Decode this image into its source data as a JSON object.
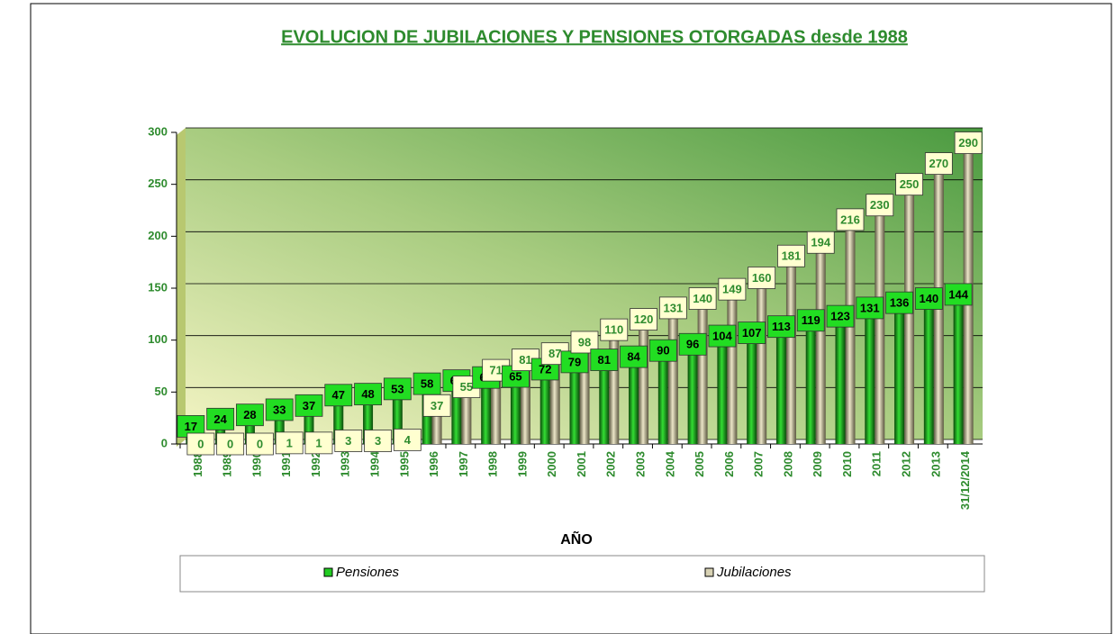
{
  "chart_data": {
    "type": "bar",
    "title": "EVOLUCION DE JUBILACIONES Y PENSIONES OTORGADAS desde 1988",
    "x_label": "AÑO",
    "categories": [
      "1988",
      "1989",
      "1990",
      "1991",
      "1992",
      "1993",
      "1994",
      "1995",
      "1996",
      "1997",
      "1998",
      "1999",
      "2000",
      "2001",
      "2002",
      "2003",
      "2004",
      "2005",
      "2006",
      "2007",
      "2008",
      "2009",
      "2010",
      "2011",
      "2012",
      "2013",
      "31/12/2014"
    ],
    "series": [
      {
        "name": "Pensiones",
        "color": "#22cc22",
        "values": [
          17,
          24,
          28,
          33,
          37,
          47,
          48,
          53,
          58,
          61,
          64,
          65,
          72,
          79,
          81,
          84,
          90,
          96,
          104,
          107,
          113,
          119,
          123,
          131,
          136,
          140,
          144
        ]
      },
      {
        "name": "Jubilaciones",
        "color": "#d8d2b4",
        "values": [
          0,
          0,
          0,
          1,
          1,
          3,
          3,
          4,
          37,
          55,
          71,
          81,
          87,
          98,
          110,
          120,
          131,
          140,
          149,
          160,
          181,
          194,
          216,
          230,
          250,
          270,
          290
        ]
      }
    ],
    "ylim": [
      0,
      300
    ],
    "yticks": [
      0,
      50,
      100,
      150,
      200,
      250,
      300
    ],
    "grid": true,
    "legend": "bottom"
  }
}
